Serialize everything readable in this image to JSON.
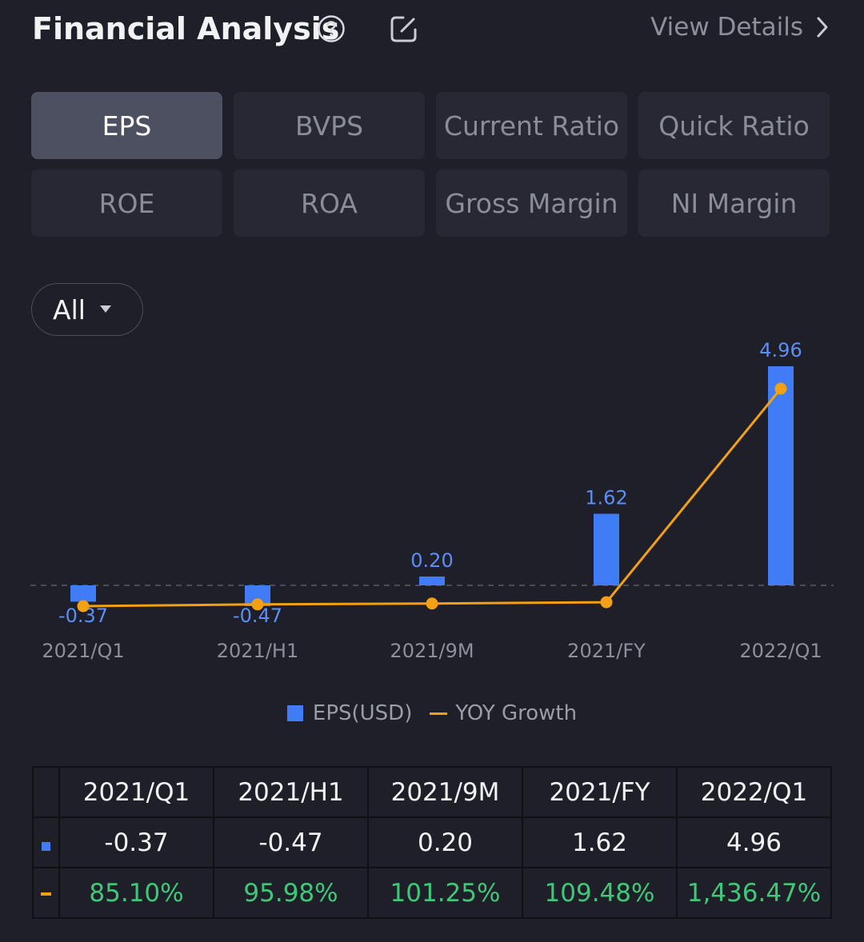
{
  "header": {
    "title": "Financial Analysis",
    "view_details": "View Details"
  },
  "tabs": [
    {
      "label": "EPS",
      "active": true
    },
    {
      "label": "BVPS",
      "active": false
    },
    {
      "label": "Current Ratio",
      "active": false
    },
    {
      "label": "Quick Ratio",
      "active": false
    },
    {
      "label": "ROE",
      "active": false
    },
    {
      "label": "ROA",
      "active": false
    },
    {
      "label": "Gross Margin",
      "active": false
    },
    {
      "label": "NI Margin",
      "active": false
    }
  ],
  "period_select": {
    "value": "All"
  },
  "colors": {
    "bar": "#3f7cf5",
    "line": "#f3a012",
    "growth_text": "#3fc878",
    "bar_label": "#5b8ef7"
  },
  "chart_data": {
    "type": "bar",
    "categories": [
      "2021/Q1",
      "2021/H1",
      "2021/9M",
      "2021/FY",
      "2022/Q1"
    ],
    "series": [
      {
        "name": "EPS(USD)",
        "type": "bar",
        "values": [
          -0.37,
          -0.47,
          0.2,
          1.62,
          4.96
        ]
      },
      {
        "name": "YOY Growth",
        "type": "line",
        "values": [
          85.1,
          95.98,
          101.25,
          109.48,
          1436.47
        ]
      }
    ],
    "data_labels": [
      "-0.37",
      "-0.47",
      "0.20",
      "1.62",
      "4.96"
    ],
    "eps_range": [
      -0.5,
      4.96
    ],
    "growth_range": [
      0,
      1700
    ],
    "zero_line": true
  },
  "legend": {
    "bar_label": "EPS(USD)",
    "line_label": "YOY Growth"
  },
  "table": {
    "headers": [
      "2021/Q1",
      "2021/H1",
      "2021/9M",
      "2021/FY",
      "2022/Q1"
    ],
    "eps_row": [
      "-0.37",
      "-0.47",
      "0.20",
      "1.62",
      "4.96"
    ],
    "growth_row": [
      "85.10%",
      "95.98%",
      "101.25%",
      "109.48%",
      "1,436.47%"
    ]
  }
}
